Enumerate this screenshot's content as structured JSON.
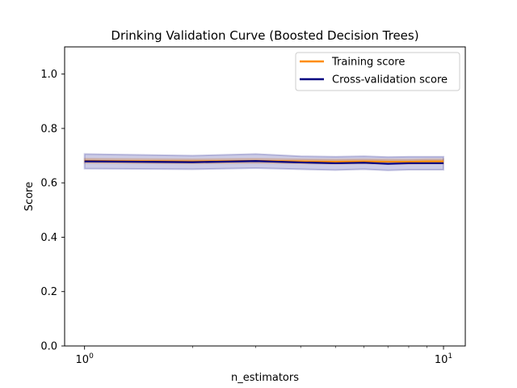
{
  "chart_data": {
    "type": "line",
    "title": "Drinking Validation Curve (Boosted Decision Trees)",
    "xlabel": "n_estimators",
    "ylabel": "Score",
    "x_scale": "log",
    "xlim": [
      0.88,
      11.5
    ],
    "ylim": [
      0.0,
      1.1
    ],
    "x": [
      1,
      2,
      3,
      4,
      5,
      6,
      7,
      8,
      9,
      10
    ],
    "x_tick_labels": [
      {
        "value": 1,
        "base": "10",
        "exp": "0"
      },
      {
        "value": 10,
        "base": "10",
        "exp": "1"
      }
    ],
    "y_ticks": [
      0.0,
      0.2,
      0.4,
      0.6,
      0.8,
      1.0
    ],
    "y_tick_labels": [
      "0.0",
      "0.2",
      "0.4",
      "0.6",
      "0.8",
      "1.0"
    ],
    "grid": false,
    "legend_position": "top-right",
    "series": [
      {
        "name": "Training score",
        "color": "#ff8c00",
        "values": [
          0.681,
          0.679,
          0.681,
          0.679,
          0.678,
          0.679,
          0.678,
          0.678,
          0.679,
          0.679
        ],
        "lower": [
          0.673,
          0.671,
          0.673,
          0.671,
          0.67,
          0.671,
          0.67,
          0.67,
          0.671,
          0.671
        ],
        "upper": [
          0.689,
          0.687,
          0.689,
          0.687,
          0.686,
          0.687,
          0.686,
          0.686,
          0.687,
          0.687
        ]
      },
      {
        "name": "Cross-validation score",
        "color": "#000080",
        "values": [
          0.679,
          0.676,
          0.68,
          0.675,
          0.672,
          0.674,
          0.67,
          0.672,
          0.672,
          0.672
        ],
        "lower": [
          0.652,
          0.65,
          0.654,
          0.65,
          0.647,
          0.65,
          0.646,
          0.648,
          0.648,
          0.648
        ],
        "upper": [
          0.706,
          0.7,
          0.706,
          0.698,
          0.696,
          0.698,
          0.695,
          0.696,
          0.696,
          0.696
        ]
      }
    ]
  }
}
